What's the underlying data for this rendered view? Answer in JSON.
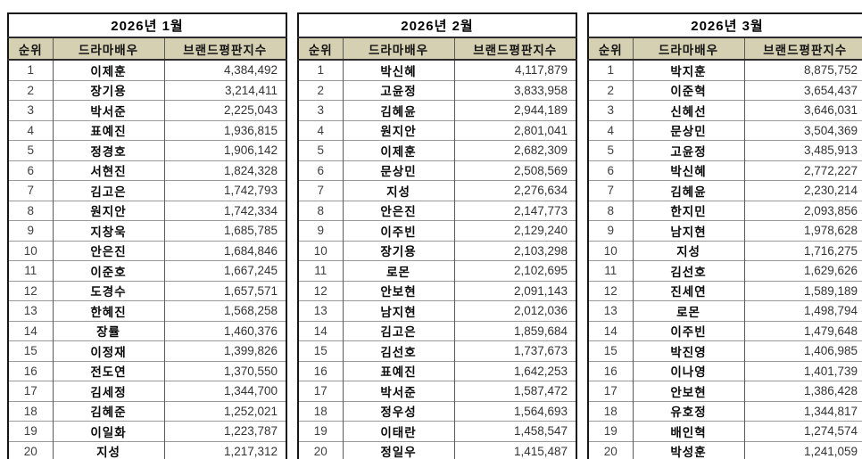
{
  "page": {
    "background": "#ffffff",
    "header_bg": "#d6d0b2",
    "outer_border": "#161616",
    "grid_line": "#9a9a9a"
  },
  "columns": {
    "rank": "순위",
    "actor": "드라마배우",
    "index": "브랜드평판지수"
  },
  "chart_data": [
    {
      "type": "table",
      "title": "2026년 1월",
      "columns": [
        "순위",
        "드라마배우",
        "브랜드평판지수"
      ],
      "rows": [
        [
          1,
          "이제훈",
          "4,384,492"
        ],
        [
          2,
          "장기용",
          "3,214,411"
        ],
        [
          3,
          "박서준",
          "2,225,043"
        ],
        [
          4,
          "표예진",
          "1,936,815"
        ],
        [
          5,
          "정경호",
          "1,906,142"
        ],
        [
          6,
          "서현진",
          "1,824,328"
        ],
        [
          7,
          "김고은",
          "1,742,793"
        ],
        [
          8,
          "원지안",
          "1,742,334"
        ],
        [
          9,
          "지창욱",
          "1,685,785"
        ],
        [
          10,
          "안은진",
          "1,684,846"
        ],
        [
          11,
          "이준호",
          "1,667,245"
        ],
        [
          12,
          "도경수",
          "1,657,571"
        ],
        [
          13,
          "한혜진",
          "1,568,258"
        ],
        [
          14,
          "장률",
          "1,460,376"
        ],
        [
          15,
          "이정재",
          "1,399,826"
        ],
        [
          16,
          "전도연",
          "1,370,550"
        ],
        [
          17,
          "김세정",
          "1,344,700"
        ],
        [
          18,
          "김혜준",
          "1,252,021"
        ],
        [
          19,
          "이일화",
          "1,223,787"
        ],
        [
          20,
          "지성",
          "1,217,312"
        ]
      ]
    },
    {
      "type": "table",
      "title": "2026년 2월",
      "columns": [
        "순위",
        "드라마배우",
        "브랜드평판지수"
      ],
      "rows": [
        [
          1,
          "박신혜",
          "4,117,879"
        ],
        [
          2,
          "고윤정",
          "3,833,958"
        ],
        [
          3,
          "김혜윤",
          "2,944,189"
        ],
        [
          4,
          "원지안",
          "2,801,041"
        ],
        [
          5,
          "이제훈",
          "2,682,309"
        ],
        [
          6,
          "문상민",
          "2,508,569"
        ],
        [
          7,
          "지성",
          "2,276,634"
        ],
        [
          8,
          "안은진",
          "2,147,773"
        ],
        [
          9,
          "이주빈",
          "2,129,240"
        ],
        [
          10,
          "장기용",
          "2,103,298"
        ],
        [
          11,
          "로몬",
          "2,102,695"
        ],
        [
          12,
          "안보현",
          "2,091,143"
        ],
        [
          13,
          "남지현",
          "2,012,036"
        ],
        [
          14,
          "김고은",
          "1,859,684"
        ],
        [
          15,
          "김선호",
          "1,737,673"
        ],
        [
          16,
          "표예진",
          "1,642,253"
        ],
        [
          17,
          "박서준",
          "1,587,472"
        ],
        [
          18,
          "정우성",
          "1,564,693"
        ],
        [
          19,
          "이태란",
          "1,458,547"
        ],
        [
          20,
          "정일우",
          "1,415,487"
        ]
      ]
    },
    {
      "type": "table",
      "title": "2026년 3월",
      "columns": [
        "순위",
        "드라마배우",
        "브랜드평판지수"
      ],
      "rows": [
        [
          1,
          "박지훈",
          "8,875,752"
        ],
        [
          2,
          "이준혁",
          "3,654,437"
        ],
        [
          3,
          "신혜선",
          "3,646,031"
        ],
        [
          4,
          "문상민",
          "3,504,369"
        ],
        [
          5,
          "고윤정",
          "3,485,913"
        ],
        [
          6,
          "박신혜",
          "2,772,227"
        ],
        [
          7,
          "김혜윤",
          "2,230,214"
        ],
        [
          8,
          "한지민",
          "2,093,856"
        ],
        [
          9,
          "남지현",
          "1,978,628"
        ],
        [
          10,
          "지성",
          "1,716,275"
        ],
        [
          11,
          "김선호",
          "1,629,626"
        ],
        [
          12,
          "진세연",
          "1,589,189"
        ],
        [
          13,
          "로몬",
          "1,498,794"
        ],
        [
          14,
          "이주빈",
          "1,479,648"
        ],
        [
          15,
          "박진영",
          "1,406,985"
        ],
        [
          16,
          "이나영",
          "1,401,739"
        ],
        [
          17,
          "안보현",
          "1,386,428"
        ],
        [
          18,
          "유호정",
          "1,344,817"
        ],
        [
          19,
          "배인혁",
          "1,274,574"
        ],
        [
          20,
          "박성훈",
          "1,241,059"
        ]
      ]
    }
  ]
}
